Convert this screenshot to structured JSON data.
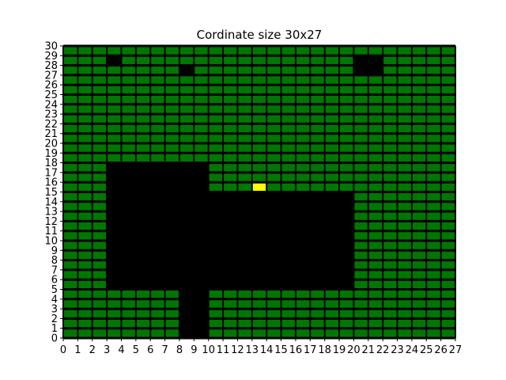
{
  "chart_data": {
    "type": "heatmap",
    "title": "Cordinate size 30x27",
    "xlabel": "",
    "ylabel": "",
    "xlim": [
      0,
      27
    ],
    "ylim": [
      0,
      30
    ],
    "x_ticks": [
      0,
      1,
      2,
      3,
      4,
      5,
      6,
      7,
      8,
      9,
      10,
      11,
      12,
      13,
      14,
      15,
      16,
      17,
      18,
      19,
      20,
      21,
      22,
      23,
      24,
      25,
      26,
      27
    ],
    "y_ticks": [
      0,
      1,
      2,
      3,
      4,
      5,
      6,
      7,
      8,
      9,
      10,
      11,
      12,
      13,
      14,
      15,
      16,
      17,
      18,
      19,
      20,
      21,
      22,
      23,
      24,
      25,
      26,
      27,
      28,
      29,
      30
    ],
    "grid": true,
    "legend": "none",
    "colors": {
      "free_cell": "#007700",
      "obstacle_cell": "#000000",
      "target_cell": "#ffff00",
      "grid_line": "#000000"
    },
    "obstacles": [
      {
        "x0": 3,
        "x1": 10,
        "y0": 5,
        "y1": 18
      },
      {
        "x0": 10,
        "x1": 20,
        "y0": 5,
        "y1": 15
      },
      {
        "x0": 8,
        "x1": 10,
        "y0": 0,
        "y1": 5
      },
      {
        "x0": 3,
        "x1": 4,
        "y0": 28,
        "y1": 29
      },
      {
        "x0": 8,
        "x1": 9,
        "y0": 27,
        "y1": 28
      },
      {
        "x0": 20,
        "x1": 22,
        "y0": 27,
        "y1": 29
      }
    ],
    "targets": [
      {
        "x": 13,
        "y": 15
      }
    ]
  }
}
